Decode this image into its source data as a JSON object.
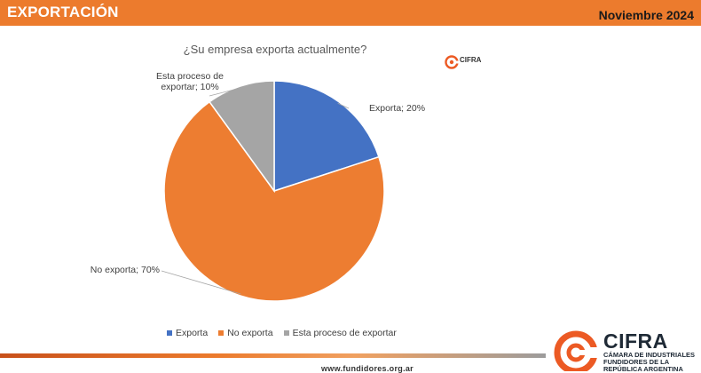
{
  "header": {
    "title": "EXPORTACIÓN",
    "date": "Noviembre 2024",
    "color": "#ec7b2d"
  },
  "logo_small": {
    "name": "CIFRA"
  },
  "logo_big": {
    "name": "CIFRA",
    "subtitle": "CÁMARA DE INDUSTRIALES FUNDIDORES DE LA REPÚBLICA ARGENTINA"
  },
  "footer": {
    "url": "www.fundidores.org.ar"
  },
  "chart_data": {
    "type": "pie",
    "title": "¿Su empresa exporta actualmente?",
    "slices": [
      {
        "name": "Exporta",
        "value": 20,
        "color": "#4472c4",
        "label": "Exporta; 20%"
      },
      {
        "name": "No exporta",
        "value": 70,
        "color": "#ed7d31",
        "label": "No exporta; 70%"
      },
      {
        "name": "Esta proceso de exportar",
        "value": 10,
        "color": "#a5a5a5",
        "label": "Esta proceso de exportar; 10%"
      }
    ],
    "legend": {
      "position": "bottom",
      "entries": [
        "Exporta",
        "No exporta",
        "Esta proceso de exportar"
      ]
    }
  }
}
